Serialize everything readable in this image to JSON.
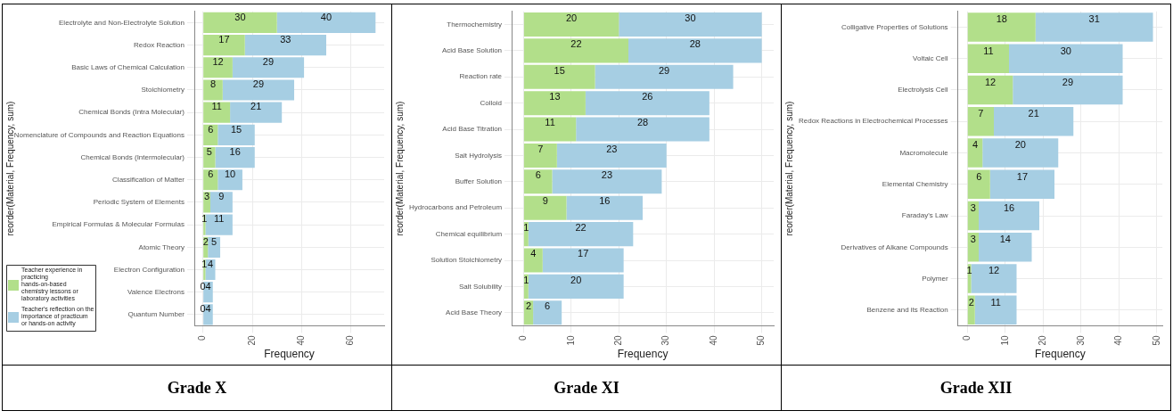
{
  "chart_data": [
    {
      "type": "bar",
      "orientation": "horizontal",
      "stacked": true,
      "title": "Grade X",
      "xlabel": "Frequency",
      "ylabel": "reorder(Material, Frequency, sum)",
      "categories": [
        "Electrolyte and Non-Electrolyte Solution",
        "Redox Reaction",
        "Basic Laws of Chemical Calculation",
        "Stoichiometry",
        "Chemical Bonds (Intra Molecular)",
        "Nomenclature of Compounds and Reaction Equations",
        "Chemical Bonds (Intermolecular)",
        "Classification of Matter",
        "Periodic System of Elements",
        "Empirical Formulas & Molecular Formulas",
        "Atomic Theory",
        "Electron Configuration",
        "Valence Electrons",
        "Quantum Number"
      ],
      "series": [
        {
          "name": "Teacher experience in practicing hands-on-based chemistry lessons or laboratory activities",
          "color": "#b2df8a",
          "values": [
            30,
            17,
            12,
            8,
            11,
            6,
            5,
            6,
            3,
            1,
            2,
            1,
            0,
            0
          ]
        },
        {
          "name": "Teacher's reflection on the importance of practicum or hands-on activity",
          "color": "#a6cee3",
          "values": [
            40,
            33,
            29,
            29,
            21,
            15,
            16,
            10,
            9,
            11,
            5,
            4,
            4,
            4
          ]
        }
      ],
      "xlim": [
        -3.5,
        73.5
      ],
      "xticks": [
        0,
        20,
        40,
        60
      ],
      "grid": true,
      "legend": "bottom left",
      "data_labels": true
    },
    {
      "type": "bar",
      "orientation": "horizontal",
      "stacked": true,
      "title": "Grade XI",
      "xlabel": "Frequency",
      "ylabel": "reorder(Material, Frequency, sum)",
      "categories": [
        "Thermochemistry",
        "Acid Base Solution",
        "Reaction rate",
        "Colloid",
        "Acid Base Titration",
        "Salt Hydrolysis",
        "Buffer Solution",
        "Hydrocarbons and Petroleum",
        "Chemical equilibrium",
        "Solution Stoichiometry",
        "Salt Solubility",
        "Acid Base Theory"
      ],
      "series": [
        {
          "color": "#b2df8a",
          "values": [
            20,
            22,
            15,
            13,
            11,
            7,
            6,
            9,
            1,
            4,
            1,
            2
          ]
        },
        {
          "color": "#a6cee3",
          "values": [
            30,
            28,
            29,
            26,
            28,
            23,
            23,
            16,
            22,
            17,
            20,
            6
          ]
        }
      ],
      "xlim": [
        -2.5,
        52.5
      ],
      "xticks": [
        0,
        10,
        20,
        30,
        40,
        50
      ],
      "grid": true,
      "data_labels": true
    },
    {
      "type": "bar",
      "orientation": "horizontal",
      "stacked": true,
      "title": "Grade XII",
      "xlabel": "Frequency",
      "ylabel": "reorder(Material, Frequency, sum)",
      "categories": [
        "Colligative Properties of Solutions",
        "Voltaic Cell",
        "Electrolysis Cell",
        "Redox Reactions in Electrochemical Processes",
        "Macromolecule",
        "Elemental Chemistry",
        "Faraday's Law",
        "Derivatives of Alkane Compounds",
        "Polymer",
        "Benzene and its Reaction"
      ],
      "series": [
        {
          "color": "#b2df8a",
          "values": [
            18,
            11,
            12,
            7,
            4,
            6,
            3,
            3,
            1,
            2
          ]
        },
        {
          "color": "#a6cee3",
          "values": [
            31,
            30,
            29,
            21,
            20,
            17,
            16,
            14,
            12,
            11
          ]
        }
      ],
      "xlim": [
        -2.5,
        51.5
      ],
      "xticks": [
        0,
        10,
        20,
        30,
        40,
        50
      ],
      "grid": true,
      "data_labels": true
    }
  ]
}
